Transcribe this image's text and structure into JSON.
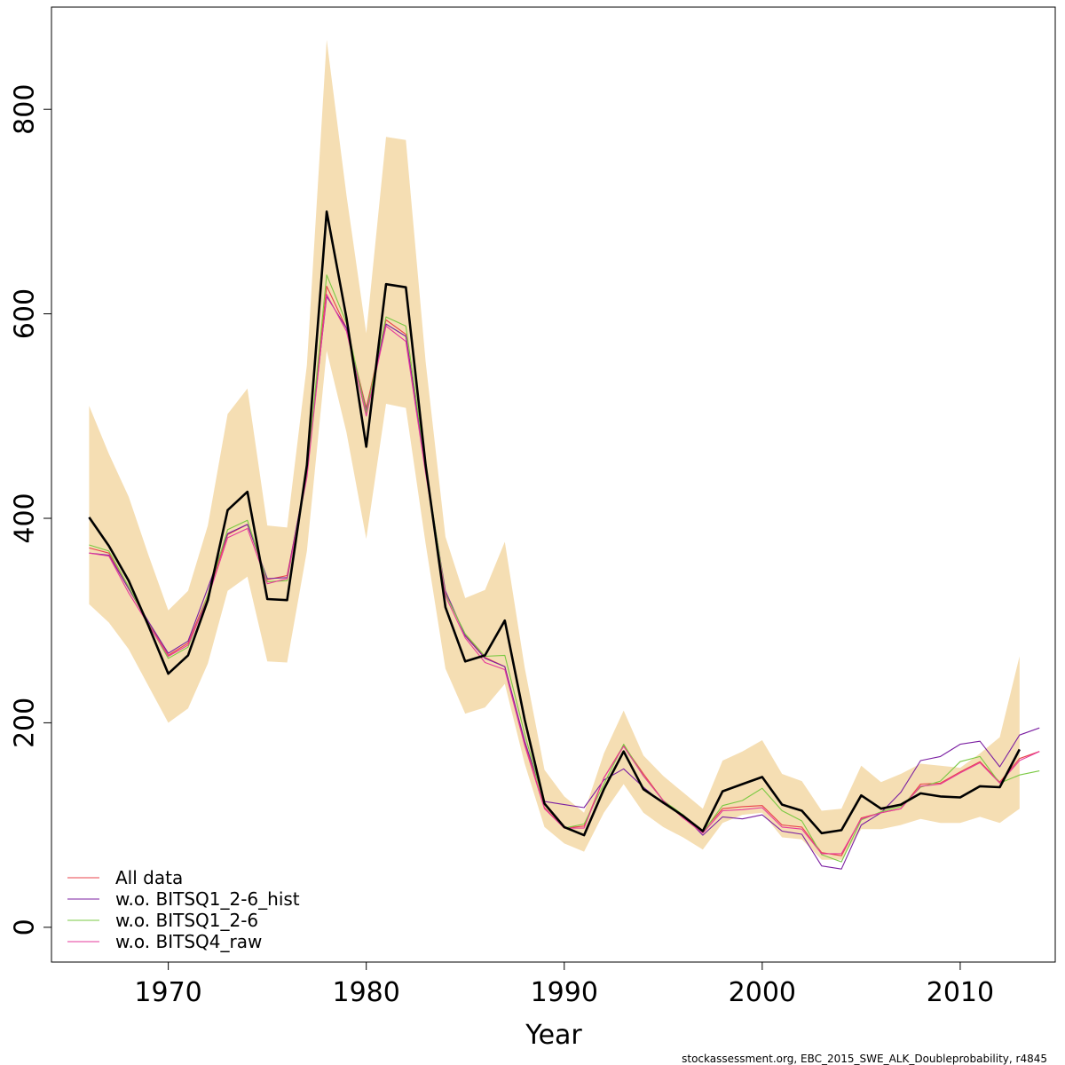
{
  "chart_data": {
    "type": "line",
    "title": "",
    "xlabel": "Year",
    "ylabel": "",
    "xlim": [
      1964.1,
      2014.8
    ],
    "ylim": [
      -34,
      900
    ],
    "x_ticks": [
      1970,
      1980,
      1990,
      2000,
      2010
    ],
    "y_ticks": [
      0,
      200,
      400,
      600,
      800
    ],
    "x_tick_labels": [
      "1970",
      "1980",
      "1990",
      "2000",
      "2010"
    ],
    "y_tick_labels": [
      "0",
      "200",
      "400",
      "600",
      "800"
    ],
    "grid": false,
    "legend_position": "bottom-left",
    "footer": "stockassessment.org, EBC_2015_SWE_ALK_Doubleprobability, r4845",
    "band": {
      "name": "Confidence interval",
      "color": "#f5deb3",
      "x": [
        1966,
        1967,
        1968,
        1969,
        1970,
        1971,
        1972,
        1973,
        1974,
        1975,
        1976,
        1977,
        1978,
        1979,
        1980,
        1981,
        1982,
        1983,
        1984,
        1985,
        1986,
        1987,
        1988,
        1989,
        1990,
        1991,
        1992,
        1993,
        1994,
        1995,
        1996,
        1997,
        1998,
        1999,
        2000,
        2001,
        2002,
        2003,
        2004,
        2005,
        2006,
        2007,
        2008,
        2009,
        2010,
        2011,
        2012,
        2013
      ],
      "lower": [
        316,
        298,
        272,
        236,
        200,
        214,
        258,
        329,
        343,
        260,
        259,
        368,
        564,
        484,
        380,
        512,
        508,
        375,
        253,
        209,
        215,
        238,
        160,
        98,
        82,
        74,
        112,
        140,
        112,
        98,
        88,
        76,
        102,
        110,
        112,
        88,
        86,
        66,
        66,
        96,
        96,
        100,
        106,
        102,
        102,
        108,
        102,
        116
      ],
      "upper": [
        510,
        463,
        421,
        364,
        310,
        329,
        393,
        502,
        527,
        393,
        391,
        550,
        868,
        716,
        581,
        773,
        770,
        553,
        382,
        322,
        330,
        377,
        254,
        154,
        128,
        112,
        170,
        212,
        168,
        148,
        132,
        116,
        163,
        172,
        183,
        150,
        143,
        114,
        116,
        158,
        142,
        150,
        160,
        158,
        156,
        170,
        186,
        265
      ]
    },
    "series": [
      {
        "name": "Main estimate",
        "color": "#000000",
        "x": [
          1966,
          1967,
          1968,
          1969,
          1970,
          1971,
          1972,
          1973,
          1974,
          1975,
          1976,
          1977,
          1978,
          1979,
          1980,
          1981,
          1982,
          1983,
          1984,
          1985,
          1986,
          1987,
          1988,
          1989,
          1990,
          1991,
          1992,
          1993,
          1994,
          1995,
          1996,
          1997,
          1998,
          1999,
          2000,
          2001,
          2002,
          2003,
          2004,
          2005,
          2006,
          2007,
          2008,
          2009,
          2010,
          2011,
          2012,
          2013
        ],
        "values": [
          401,
          373,
          339,
          295,
          248,
          266,
          320,
          408,
          426,
          321,
          320,
          452,
          700,
          596,
          470,
          629,
          626,
          452,
          313,
          260,
          266,
          300,
          203,
          121,
          98,
          90,
          135,
          172,
          135,
          122,
          109,
          94,
          133,
          140,
          147,
          120,
          114,
          92,
          95,
          129,
          116,
          120,
          131,
          128,
          127,
          138,
          137,
          174
        ]
      },
      {
        "name": "All data",
        "color": "#e8434b",
        "x": [
          1966,
          1967,
          1968,
          1969,
          1970,
          1971,
          1972,
          1973,
          1974,
          1975,
          1976,
          1977,
          1978,
          1979,
          1980,
          1981,
          1982,
          1983,
          1984,
          1985,
          1986,
          1987,
          1988,
          1989,
          1990,
          1991,
          1992,
          1993,
          1994,
          1995,
          1996,
          1997,
          1998,
          1999,
          2000,
          2001,
          2002,
          2003,
          2004,
          2005,
          2006,
          2007,
          2008,
          2009,
          2010,
          2011,
          2012,
          2013,
          2014
        ],
        "values": [
          371,
          366,
          331,
          298,
          266,
          278,
          325,
          384,
          394,
          340,
          344,
          444,
          627,
          586,
          508,
          594,
          580,
          447,
          327,
          286,
          264,
          255,
          180,
          117,
          97,
          99,
          146,
          178,
          150,
          124,
          107,
          94,
          116,
          118,
          119,
          100,
          98,
          73,
          70,
          107,
          112,
          116,
          140,
          141,
          152,
          162,
          142,
          165,
          172
        ]
      },
      {
        "name": "w.o. BITSQ1_2-6_hist",
        "color": "#7b1fa2",
        "x": [
          1966,
          1967,
          1968,
          1969,
          1970,
          1971,
          1972,
          1973,
          1974,
          1975,
          1976,
          1977,
          1978,
          1979,
          1980,
          1981,
          1982,
          1983,
          1984,
          1985,
          1986,
          1987,
          1988,
          1989,
          1990,
          1991,
          1992,
          1993,
          1994,
          1995,
          1996,
          1997,
          1998,
          1999,
          2000,
          2001,
          2002,
          2003,
          2004,
          2005,
          2006,
          2007,
          2008,
          2009,
          2010,
          2011,
          2012,
          2013,
          2014
        ],
        "values": [
          366,
          364,
          331,
          299,
          268,
          280,
          332,
          385,
          394,
          341,
          342,
          446,
          617,
          586,
          505,
          590,
          578,
          447,
          329,
          285,
          263,
          255,
          182,
          123,
          120,
          117,
          144,
          155,
          137,
          121,
          110,
          90,
          108,
          106,
          110,
          94,
          91,
          60,
          57,
          100,
          112,
          132,
          163,
          167,
          179,
          182,
          157,
          188,
          195
        ]
      },
      {
        "name": "w.o. BITSQ1_2-6",
        "color": "#7ac943",
        "x": [
          1966,
          1967,
          1968,
          1969,
          1970,
          1971,
          1972,
          1973,
          1974,
          1975,
          1976,
          1977,
          1978,
          1979,
          1980,
          1981,
          1982,
          1983,
          1984,
          1985,
          1986,
          1987,
          1988,
          1989,
          1990,
          1991,
          1992,
          1993,
          1994,
          1995,
          1996,
          1997,
          1998,
          1999,
          2000,
          2001,
          2002,
          2003,
          2004,
          2005,
          2006,
          2007,
          2008,
          2009,
          2010,
          2011,
          2012,
          2013,
          2014
        ],
        "values": [
          374,
          368,
          333,
          297,
          263,
          274,
          325,
          389,
          398,
          338,
          339,
          444,
          638,
          591,
          503,
          597,
          588,
          451,
          326,
          287,
          265,
          266,
          189,
          120,
          97,
          101,
          140,
          179,
          148,
          124,
          110,
          93,
          119,
          124,
          136,
          114,
          104,
          71,
          64,
          105,
          113,
          118,
          137,
          143,
          162,
          167,
          141,
          149,
          153
        ]
      },
      {
        "name": "w.o. BITSQ4_raw",
        "color": "#e6399b",
        "x": [
          1966,
          1967,
          1968,
          1969,
          1970,
          1971,
          1972,
          1973,
          1974,
          1975,
          1976,
          1977,
          1978,
          1979,
          1980,
          1981,
          1982,
          1983,
          1984,
          1985,
          1986,
          1987,
          1988,
          1989,
          1990,
          1991,
          1992,
          1993,
          1994,
          1995,
          1996,
          1997,
          1998,
          1999,
          2000,
          2001,
          2002,
          2003,
          2004,
          2005,
          2006,
          2007,
          2008,
          2009,
          2010,
          2011,
          2012,
          2013,
          2014
        ],
        "values": [
          366,
          363,
          327,
          296,
          265,
          276,
          322,
          381,
          390,
          336,
          341,
          440,
          619,
          583,
          500,
          588,
          573,
          444,
          324,
          283,
          259,
          252,
          178,
          116,
          97,
          97,
          146,
          177,
          148,
          124,
          107,
          92,
          114,
          115,
          117,
          98,
          96,
          72,
          72,
          106,
          112,
          116,
          138,
          140,
          151,
          161,
          141,
          163,
          172
        ]
      }
    ],
    "legend": [
      "All data",
      "w.o. BITSQ1_2-6_hist",
      "w.o. BITSQ1_2-6",
      "w.o. BITSQ4_raw"
    ]
  }
}
